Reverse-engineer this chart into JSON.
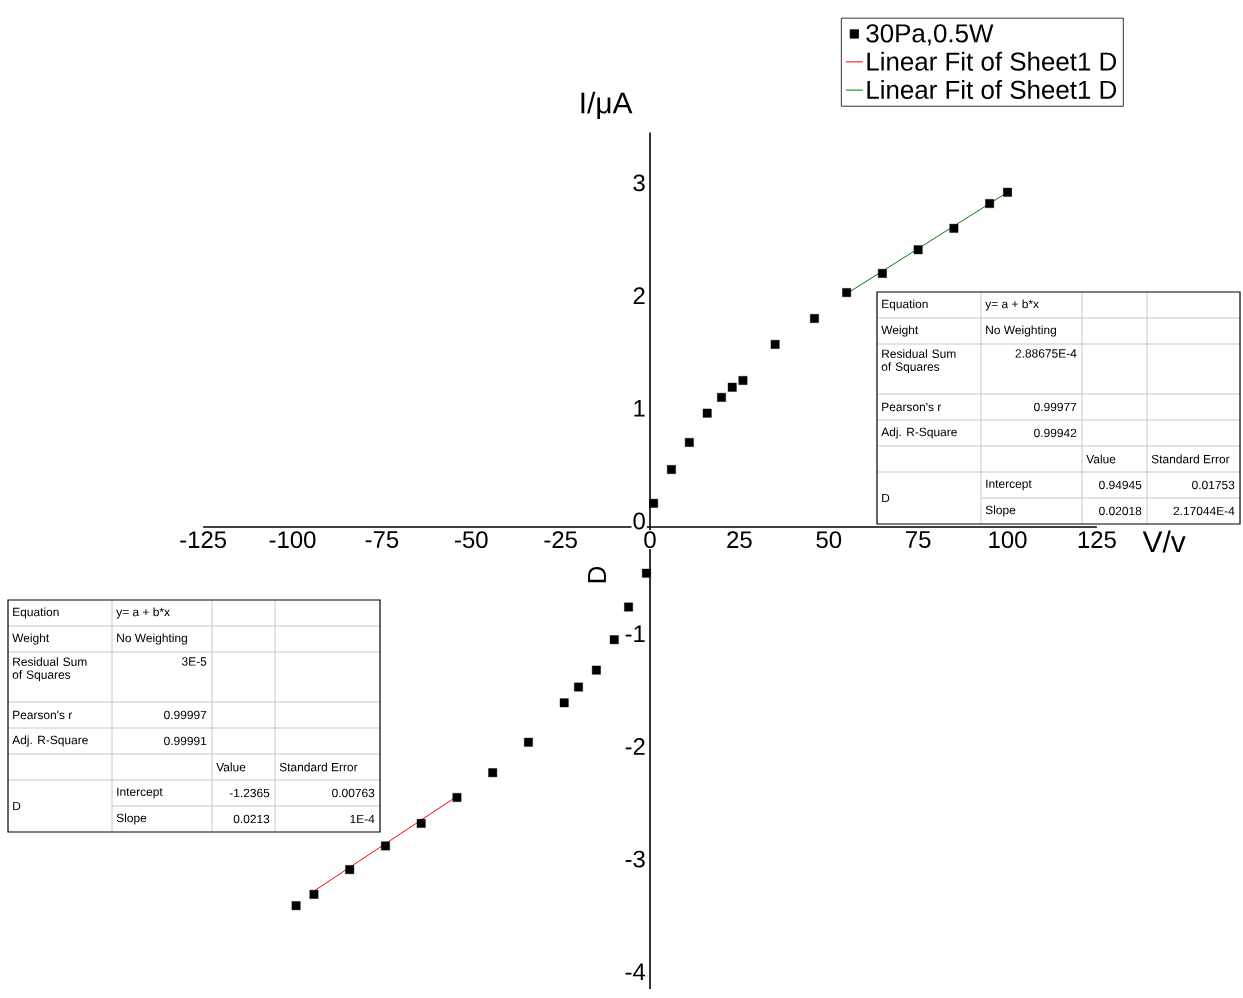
{
  "chart_data": {
    "type": "scatter",
    "xlabel": "V/v",
    "ylabel": "I/μA",
    "xlim": [
      -125,
      125
    ],
    "ylim": [
      -4.1,
      3.5
    ],
    "xticks": [
      -125,
      -100,
      -75,
      -50,
      -25,
      0,
      25,
      50,
      75,
      100,
      125
    ],
    "yticks": [
      -4,
      -3,
      -2,
      -1,
      0,
      1,
      2,
      3
    ],
    "legend": "top right",
    "grid": false,
    "series": [
      {
        "name": "30Pa,0.5W",
        "marker": "square",
        "color": "#000000",
        "x": [
          -99,
          -94,
          -84,
          -74,
          -64,
          -54,
          -44,
          -34,
          -24,
          -20,
          -15,
          -10,
          -6,
          -1,
          1,
          6,
          11,
          16,
          20,
          23,
          26,
          35,
          46,
          55,
          65,
          75,
          85,
          95,
          100
        ],
        "values": [
          -3.36,
          -3.26,
          -3.04,
          -2.83,
          -2.63,
          -2.4,
          -2.18,
          -1.91,
          -1.56,
          -1.42,
          -1.27,
          -1.0,
          -0.71,
          -0.41,
          0.21,
          0.51,
          0.75,
          1.01,
          1.15,
          1.24,
          1.3,
          1.62,
          1.85,
          2.08,
          2.25,
          2.46,
          2.65,
          2.87,
          2.97
        ]
      },
      {
        "name": "Linear Fit of Sheet1 D",
        "type": "line",
        "color": "#ff0000",
        "x": [
          -94,
          -54
        ],
        "values": [
          -3.23,
          -2.39
        ]
      },
      {
        "name": "Linear Fit of Sheet1 D",
        "type": "line",
        "color": "#008000",
        "x": [
          55,
          100
        ],
        "values": [
          2.07,
          2.97
        ]
      }
    ],
    "annotations": [
      "Equation",
      "y= a + b*x",
      "Weight",
      "No Weighting",
      "Residual Sum of Squares",
      "2.88675E-4",
      "Pearson's r",
      "0.99977",
      "Adj. R-Square",
      "0.99942",
      "Value",
      "Standard Error",
      "D",
      "Intercept",
      "0.94945",
      "0.01753",
      "Slope",
      "0.02018",
      "2.17044E-4",
      "Equation",
      "y= a + b*x",
      "Weight",
      "No Weighting",
      "Residual Sum of Squares",
      "3E-5",
      "Pearson's r",
      "0.99997",
      "Adj. R-Square",
      "0.99991",
      "Value",
      "Standard Error",
      "D",
      "Intercept",
      "-1.2365",
      "0.00763",
      "Slope",
      "0.0213",
      "1E-4",
      "D"
    ]
  }
}
